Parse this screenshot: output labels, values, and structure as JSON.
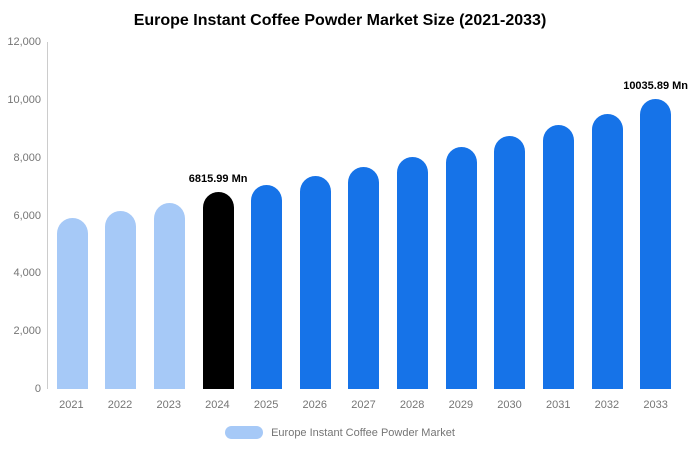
{
  "title": "Europe Instant Coffee Powder Market Size (2021-2033)",
  "legend": {
    "label": "Europe Instant Coffee Powder Market"
  },
  "colors": {
    "past": "#a6c9f7",
    "current": "#000000",
    "forecast": "#1673e8",
    "axis_line": "#cccccc",
    "tick_text": "#757575"
  },
  "chart_data": {
    "type": "bar",
    "title": "Europe Instant Coffee Powder Market Size (2021-2033)",
    "unit": "Mn",
    "categories": [
      "2021",
      "2022",
      "2023",
      "2024",
      "2025",
      "2026",
      "2027",
      "2028",
      "2029",
      "2030",
      "2031",
      "2032",
      "2033"
    ],
    "values": [
      5900,
      6150,
      6450,
      6815.99,
      7050,
      7350,
      7680,
      8020,
      8370,
      8740,
      9120,
      9520,
      10035.89
    ],
    "bar_color_keys": [
      "past",
      "past",
      "past",
      "current",
      "forecast",
      "forecast",
      "forecast",
      "forecast",
      "forecast",
      "forecast",
      "forecast",
      "forecast",
      "forecast"
    ],
    "annotations": [
      {
        "category": "2024",
        "text": "6815.99 Mn"
      },
      {
        "category": "2033",
        "text": "10035.89 Mn"
      }
    ],
    "ylim": [
      0,
      12000
    ],
    "yticks": [
      {
        "value": 0,
        "label": "0"
      },
      {
        "value": 2000,
        "label": "2,000"
      },
      {
        "value": 4000,
        "label": "4,000"
      },
      {
        "value": 6000,
        "label": "6,000"
      },
      {
        "value": 8000,
        "label": "8,000"
      },
      {
        "value": 10000,
        "label": "10,000"
      },
      {
        "value": 12000,
        "label": "12,000"
      }
    ],
    "grid": false,
    "legend_position": "bottom",
    "legend_entries": [
      "Europe Instant Coffee Powder Market"
    ]
  }
}
